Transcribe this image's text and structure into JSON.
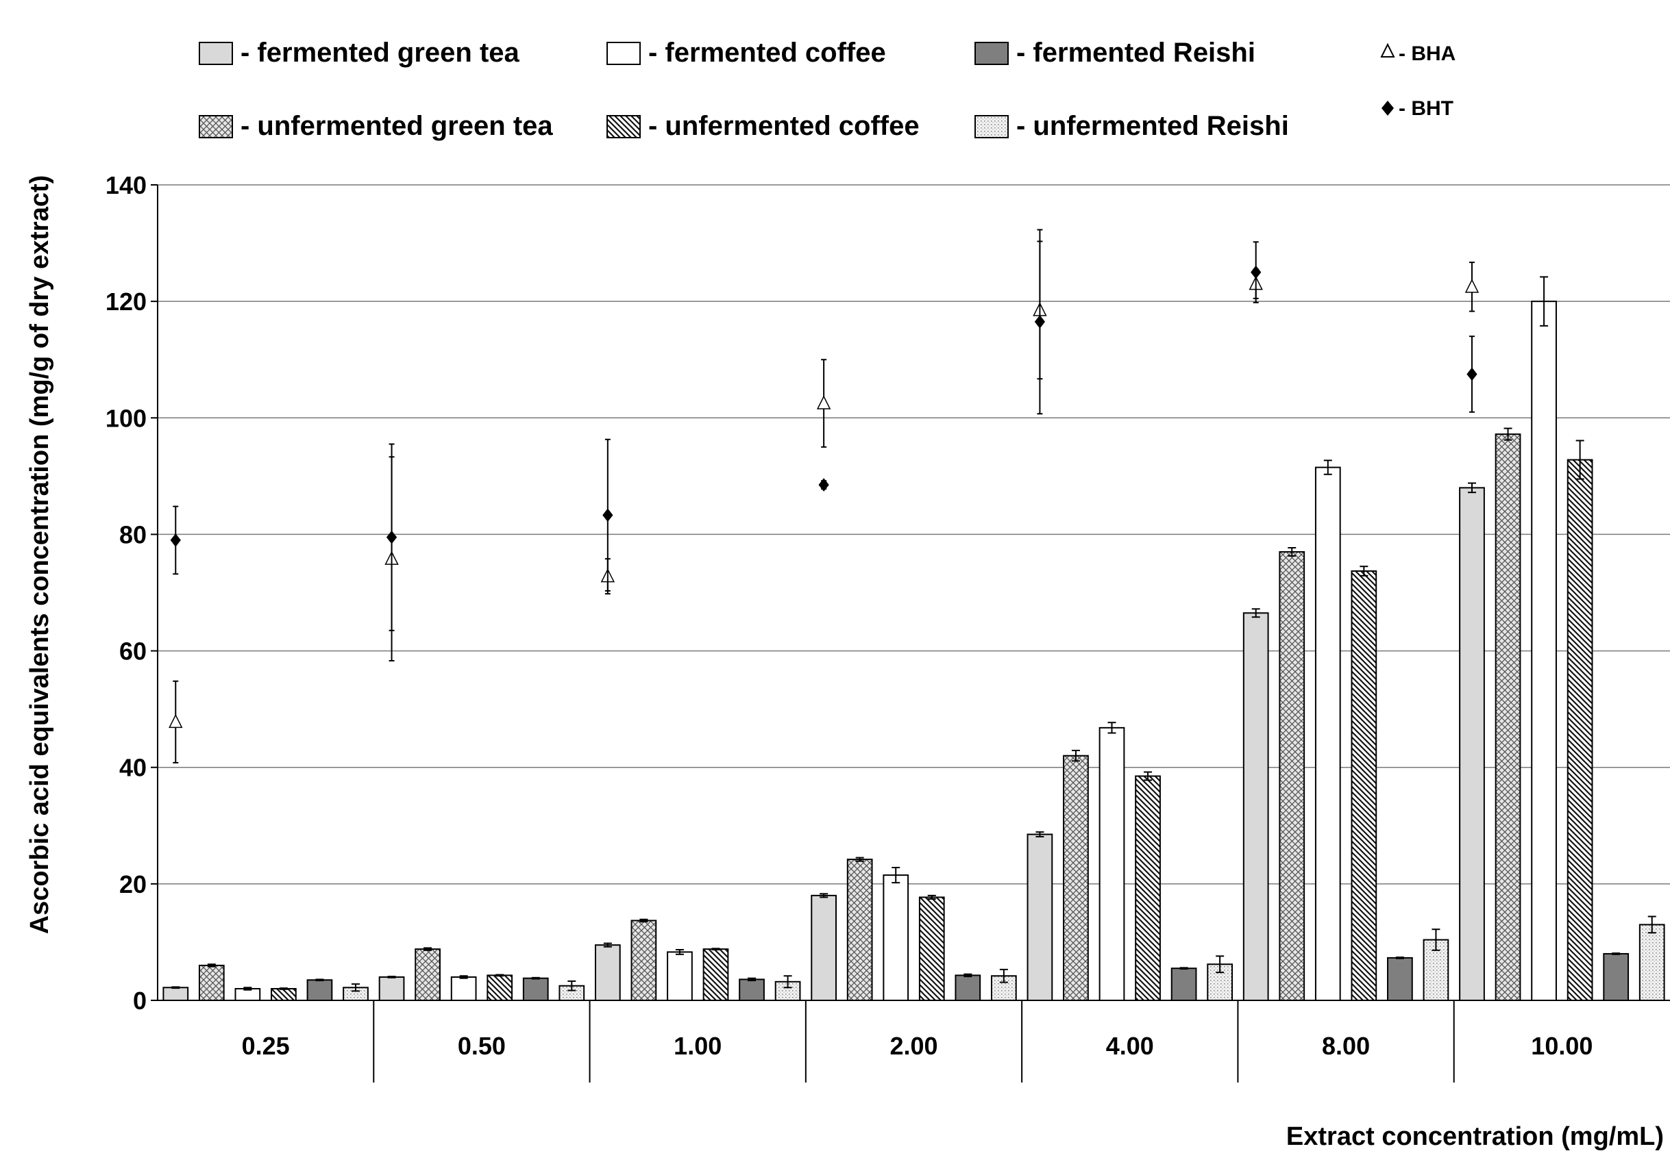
{
  "chart_data": {
    "type": "bar",
    "categories": [
      "0.25",
      "0.50",
      "1.00",
      "2.00",
      "4.00",
      "8.00",
      "10.00"
    ],
    "series": [
      {
        "name": "fermented green tea",
        "kind": "bar",
        "pattern": "light-gray",
        "values": [
          2.2,
          4.0,
          9.5,
          18.0,
          28.5,
          66.5,
          88.0
        ],
        "errors": [
          0.1,
          0.1,
          0.3,
          0.3,
          0.4,
          0.7,
          0.8
        ]
      },
      {
        "name": "unfermented green tea",
        "kind": "bar",
        "pattern": "crosshatch",
        "values": [
          6.0,
          8.8,
          13.7,
          24.2,
          42.0,
          77.0,
          97.2
        ],
        "errors": [
          0.2,
          0.2,
          0.2,
          0.3,
          0.9,
          0.7,
          1.0
        ]
      },
      {
        "name": "fermented coffee",
        "kind": "bar",
        "pattern": "white",
        "values": [
          2.0,
          4.0,
          8.3,
          21.5,
          46.8,
          91.5,
          120.0
        ],
        "errors": [
          0.2,
          0.2,
          0.4,
          1.3,
          0.9,
          1.2,
          4.2
        ]
      },
      {
        "name": "unfermented coffee",
        "kind": "bar",
        "pattern": "diagonal",
        "values": [
          2.0,
          4.3,
          8.8,
          17.7,
          38.5,
          73.7,
          92.8
        ],
        "errors": [
          0.1,
          0.1,
          0.1,
          0.3,
          0.7,
          0.8,
          3.3
        ]
      },
      {
        "name": "fermented Reishi",
        "kind": "bar",
        "pattern": "dark-gray",
        "values": [
          3.5,
          3.8,
          3.6,
          4.3,
          5.5,
          7.3,
          8.0
        ],
        "errors": [
          0.1,
          0.1,
          0.2,
          0.2,
          0.1,
          0.1,
          0.1
        ]
      },
      {
        "name": "unfermented Reishi",
        "kind": "bar",
        "pattern": "dotted",
        "values": [
          2.2,
          2.5,
          3.2,
          4.2,
          6.2,
          10.4,
          13.0
        ],
        "errors": [
          0.6,
          0.8,
          1.0,
          1.1,
          1.4,
          1.8,
          1.4
        ]
      },
      {
        "name": "BHA",
        "kind": "marker",
        "marker": "open-triangle",
        "values": [
          47.8,
          75.8,
          72.8,
          102.5,
          118.5,
          123.0,
          122.5
        ],
        "errors": [
          7.0,
          17.5,
          3.0,
          7.5,
          11.8,
          2.5,
          4.2
        ]
      },
      {
        "name": "BHT",
        "kind": "marker",
        "marker": "filled-diamond",
        "values": [
          79.0,
          79.5,
          83.3,
          88.5,
          116.5,
          125.0,
          107.5
        ],
        "errors": [
          5.8,
          16.0,
          13.0,
          0.7,
          15.8,
          5.2,
          6.5
        ]
      }
    ],
    "xlabel": "Extract concentration (mg/mL)",
    "ylabel": "Ascorbic acid equivalents concentration (mg/g of dry extract)",
    "yticks": [
      "0",
      "20",
      "40",
      "60",
      "80",
      "100",
      "120",
      "140"
    ],
    "ylim": [
      0,
      140
    ],
    "grid": "horizontal",
    "legend": "top",
    "legend_labels": [
      "- fermented green tea",
      "- fermented coffee",
      "- fermented Reishi",
      "- BHA",
      "- unfermented green tea",
      "- unfermented coffee",
      "- unfermented Reishi",
      "- BHT"
    ]
  }
}
